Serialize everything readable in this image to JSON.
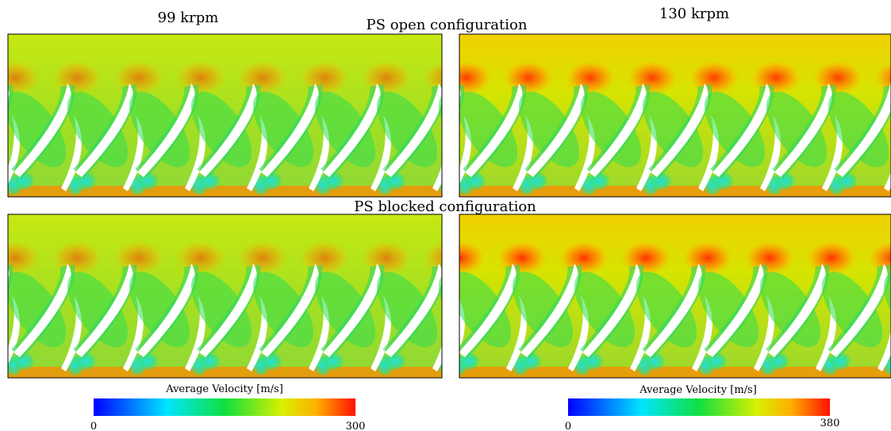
{
  "titles": {
    "left": "99 krpm",
    "right": "130 krpm"
  },
  "rows": [
    {
      "label": "PS open configuration"
    },
    {
      "label": "PS blocked configuration"
    }
  ],
  "colorbars": [
    {
      "title": "Average Velocity [m/s]",
      "min": 0,
      "max": 300
    },
    {
      "title": "Average Velocity [m/s]",
      "min": 0,
      "max": 380
    }
  ]
}
